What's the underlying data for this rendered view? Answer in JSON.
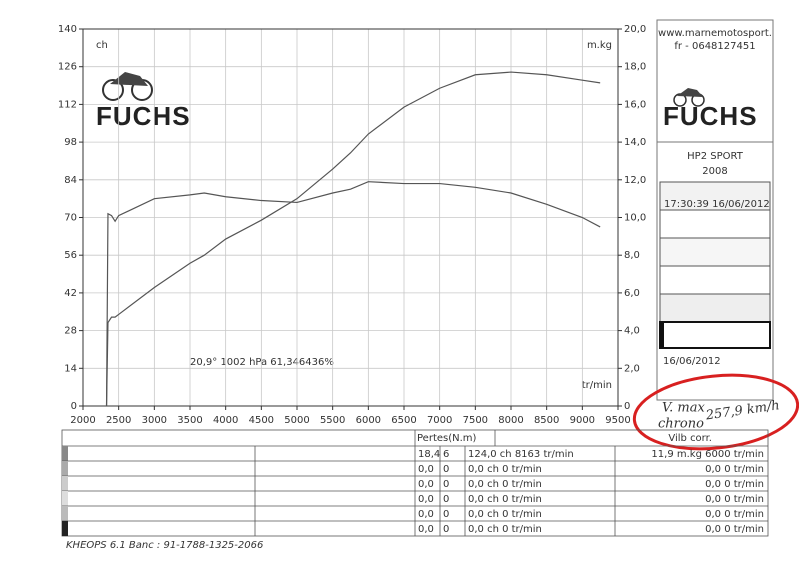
{
  "chart_data": {
    "type": "line",
    "left_unit": "ch",
    "right_unit": "m.kg",
    "x_unit": "tr/min",
    "conditions": "20,9°  1002 hPa  61,346436%",
    "x": [
      2330,
      2350,
      2400,
      2450,
      2500,
      3000,
      3500,
      3700,
      4000,
      4500,
      5000,
      5500,
      5750,
      6000,
      6500,
      7000,
      7500,
      8000,
      8500,
      9000,
      9250
    ],
    "series": [
      {
        "name": "ch",
        "color": "#555555",
        "values": [
          0,
          31,
          33,
          33,
          34,
          44,
          53,
          56,
          62,
          69,
          77,
          88,
          94,
          101,
          111,
          118,
          123,
          124,
          123,
          121,
          120
        ]
      },
      {
        "name": "m.kg",
        "color": "#555555",
        "axis": "y2",
        "values": [
          0,
          10.2,
          10.1,
          9.8,
          10.1,
          11.0,
          11.2,
          11.3,
          11.1,
          10.9,
          10.8,
          11.3,
          11.5,
          11.9,
          11.8,
          11.8,
          11.6,
          11.3,
          10.7,
          10.0,
          9.5
        ]
      }
    ],
    "xlim": [
      2000,
      9500
    ],
    "xticks": [
      2000,
      2500,
      3000,
      3500,
      4000,
      4500,
      5000,
      5500,
      6000,
      6500,
      7000,
      7500,
      8000,
      8500,
      9000,
      9500
    ],
    "ylim": [
      0,
      140
    ],
    "yticks": [
      0,
      14,
      28,
      42,
      56,
      70,
      84,
      98,
      112,
      126,
      140
    ],
    "y2lim": [
      0,
      20
    ],
    "y2ticks": [
      0,
      {
        "value": 2,
        "label": "2,0"
      },
      {
        "value": 4,
        "label": "4,0"
      },
      {
        "value": 6,
        "label": "6,0"
      },
      {
        "value": 8,
        "label": "8,0"
      },
      {
        "value": 10,
        "label": "10,0"
      },
      {
        "value": 12,
        "label": "12,0"
      },
      {
        "value": 14,
        "label": "14,0"
      },
      {
        "value": 16,
        "label": "16,0"
      },
      {
        "value": 18,
        "label": "18,0"
      },
      {
        "value": 20,
        "label": "20,0"
      }
    ],
    "grid": true
  },
  "logo": "FUCHS",
  "panel": {
    "website": "www.marnemotosport.",
    "phone": "fr - 0648127451",
    "logo": "FUCHS",
    "model": "HP2 SPORT",
    "year": "2008",
    "timestamp": "17:30:39  16/06/2012",
    "date": "16/06/2012"
  },
  "annotation": {
    "line1": "V. max",
    "line2": "chrono",
    "speed": "257,9 km/h"
  },
  "table": {
    "header": [
      "Pertes(N.m)",
      "Vilb corr."
    ],
    "rows": [
      [
        "18,4",
        "6",
        "124,0 ch 8163 tr/min",
        "11,9 m.kg 6000 tr/min"
      ],
      [
        "0,0",
        "0",
        "0,0 ch 0 tr/min",
        "0,0  0 tr/min"
      ],
      [
        "0,0",
        "0",
        "0,0 ch 0 tr/min",
        "0,0  0 tr/min"
      ],
      [
        "0,0",
        "0",
        "0,0 ch 0 tr/min",
        "0,0  0 tr/min"
      ],
      [
        "0,0",
        "0",
        "0,0 ch 0 tr/min",
        "0,0  0 tr/min"
      ],
      [
        "0,0",
        "0",
        "0,0 ch 0 tr/min",
        "0,0  0 tr/min"
      ]
    ]
  },
  "footer": "KHEOPS 6.1  Banc : 91-1788-1325-2066"
}
